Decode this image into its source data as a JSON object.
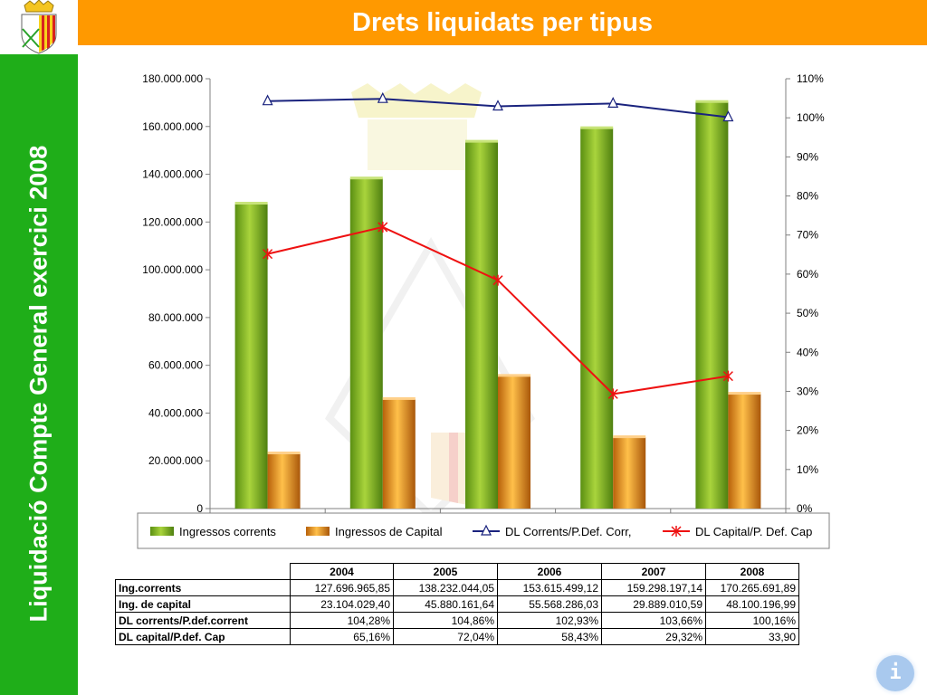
{
  "slide": {
    "title": "Drets liquidats per tipus",
    "side_title": "Liquidació Compte General exercici 2008"
  },
  "colors": {
    "title_bar": "#ff9900",
    "side_bar": "#1fae19",
    "bar_corrents": "#7ab51d",
    "bar_capital": "#e88f1a",
    "line_corrents": "#1a237e",
    "line_capital": "#ee1111"
  },
  "icons": [
    "coat-of-arms-icon",
    "info-icon"
  ],
  "chart_data": {
    "type": "bar",
    "categories": [
      "2004",
      "2005",
      "2006",
      "2007",
      "2008"
    ],
    "series": [
      {
        "name": "Ingressos corrents",
        "type": "bar",
        "axis": "left",
        "values": [
          127696965.85,
          138232044.05,
          153615499.12,
          159298197.14,
          170265691.89
        ]
      },
      {
        "name": "Ingressos de Capital",
        "type": "bar",
        "axis": "left",
        "values": [
          23104029.4,
          45880161.64,
          55568286.03,
          29889010.59,
          48100196.99
        ]
      },
      {
        "name": "DL Corrents/P.Def. Corr,",
        "type": "line",
        "axis": "right",
        "marker": "triangle",
        "values": [
          104.28,
          104.86,
          102.93,
          103.66,
          100.16
        ]
      },
      {
        "name": "DL Capital/P. Def. Cap",
        "type": "line",
        "axis": "right",
        "marker": "star",
        "values": [
          65.16,
          72.04,
          58.43,
          29.32,
          33.9
        ]
      }
    ],
    "ylim_left": [
      0,
      180000000
    ],
    "yticks_left": [
      "0",
      "20.000.000",
      "40.000.000",
      "60.000.000",
      "80.000.000",
      "100.000.000",
      "120.000.000",
      "140.000.000",
      "160.000.000",
      "180.000.000"
    ],
    "ylim_right": [
      0,
      110
    ],
    "yticks_right": [
      "0%",
      "10%",
      "20%",
      "30%",
      "40%",
      "50%",
      "60%",
      "70%",
      "80%",
      "90%",
      "100%",
      "110%"
    ],
    "legend": "bottom",
    "grid": false
  },
  "table": {
    "headers": [
      "",
      "2004",
      "2005",
      "2006",
      "2007",
      "2008"
    ],
    "rows": [
      {
        "label": "Ing.corrents",
        "cells": [
          "127.696.965,85",
          "138.232.044,05",
          "153.615.499,12",
          "159.298.197,14",
          "170.265.691,89"
        ]
      },
      {
        "label": "Ing. de capital",
        "cells": [
          "23.104.029,40",
          "45.880.161,64",
          "55.568.286,03",
          "29.889.010,59",
          "48.100.196,99"
        ]
      },
      {
        "label": "DL corrents/P.def.corrent",
        "cells": [
          "104,28%",
          "104,86%",
          "102,93%",
          "103,66%",
          "100,16%"
        ]
      },
      {
        "label": "DL capital/P.def. Cap",
        "cells": [
          "65,16%",
          "72,04%",
          "58,43%",
          "29,32%",
          "33,90"
        ]
      }
    ]
  },
  "info_button": {
    "label": "i"
  }
}
